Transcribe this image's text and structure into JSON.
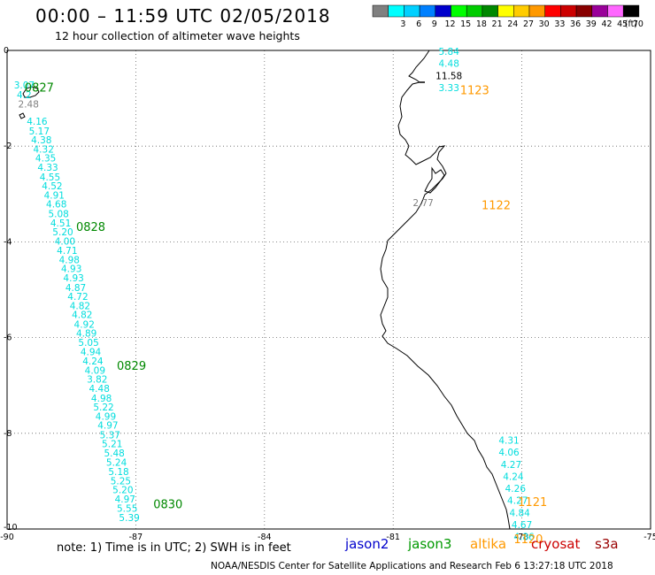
{
  "header": {
    "title": "00:00 – 11:59 UTC 02/05/2018",
    "subtitle": "12 hour collection of altimeter wave heights"
  },
  "legend": {
    "unit": "(ft)",
    "bins": [
      {
        "label": "",
        "color": "#808080"
      },
      {
        "label": "3",
        "color": "#00ffff"
      },
      {
        "label": "6",
        "color": "#00d0ff"
      },
      {
        "label": "9",
        "color": "#0080ff"
      },
      {
        "label": "12",
        "color": "#0000cc"
      },
      {
        "label": "15",
        "color": "#00ff00"
      },
      {
        "label": "18",
        "color": "#00cc00"
      },
      {
        "label": "21",
        "color": "#008800"
      },
      {
        "label": "24",
        "color": "#ffff00"
      },
      {
        "label": "27",
        "color": "#ffcc00"
      },
      {
        "label": "30",
        "color": "#ff9900"
      },
      {
        "label": "33",
        "color": "#ff0000"
      },
      {
        "label": "36",
        "color": "#cc0000"
      },
      {
        "label": "39",
        "color": "#880000"
      },
      {
        "label": "42",
        "color": "#990099"
      },
      {
        "label": "45",
        "color": "#ff66ff"
      },
      {
        "label": "70",
        "color": "#000000"
      }
    ]
  },
  "map": {
    "lon_range": [
      -90,
      -75
    ],
    "lat_range": [
      -10,
      0
    ],
    "x_ticks": [
      {
        "value": -90,
        "label": "-90"
      },
      {
        "value": -87,
        "label": "-87"
      },
      {
        "value": -84,
        "label": "-84"
      },
      {
        "value": -81,
        "label": "-81"
      },
      {
        "value": -78,
        "label": "-78"
      },
      {
        "value": -75,
        "label": "-75"
      }
    ],
    "y_ticks": [
      {
        "value": 0,
        "label": "0"
      },
      {
        "value": -2,
        "label": "-2"
      },
      {
        "value": -4,
        "label": "-4"
      },
      {
        "value": -6,
        "label": "-6"
      },
      {
        "value": -8,
        "label": "-8"
      },
      {
        "value": -10,
        "label": "-10"
      }
    ],
    "grid": "dotted"
  },
  "chart_data": {
    "type": "scatter",
    "tracks": [
      {
        "satellite": "jason3",
        "color": "#00dddd",
        "points": [
          {
            "lon": -89.6,
            "lat": -0.72,
            "v": "3.07"
          },
          {
            "lon": -89.6,
            "lat": -0.92,
            "v": "4.2"
          },
          {
            "lon": -89.5,
            "lat": -1.12,
            "v": "2.48",
            "color": "#808080"
          },
          {
            "lon": -89.3,
            "lat": -1.48,
            "v": "4.16"
          },
          {
            "lon": -89.25,
            "lat": -1.68,
            "v": "5.17"
          },
          {
            "lon": -89.2,
            "lat": -1.87,
            "v": "4.38"
          },
          {
            "lon": -89.15,
            "lat": -2.06,
            "v": "4.32"
          },
          {
            "lon": -89.1,
            "lat": -2.25,
            "v": "4.35"
          },
          {
            "lon": -89.05,
            "lat": -2.44,
            "v": "4.33"
          },
          {
            "lon": -89.0,
            "lat": -2.64,
            "v": "4.55"
          },
          {
            "lon": -88.95,
            "lat": -2.83,
            "v": "4.52"
          },
          {
            "lon": -88.9,
            "lat": -3.02,
            "v": "4.91"
          },
          {
            "lon": -88.85,
            "lat": -3.21,
            "v": "4.68"
          },
          {
            "lon": -88.8,
            "lat": -3.41,
            "v": "5.08"
          },
          {
            "lon": -88.75,
            "lat": -3.6,
            "v": "4.51"
          },
          {
            "lon": -88.7,
            "lat": -3.79,
            "v": "5.20"
          },
          {
            "lon": -88.65,
            "lat": -3.98,
            "v": "4.00"
          },
          {
            "lon": -88.6,
            "lat": -4.18,
            "v": "4.71"
          },
          {
            "lon": -88.55,
            "lat": -4.37,
            "v": "4.98"
          },
          {
            "lon": -88.5,
            "lat": -4.56,
            "v": "4.93"
          },
          {
            "lon": -88.45,
            "lat": -4.75,
            "v": "4.93"
          },
          {
            "lon": -88.4,
            "lat": -4.95,
            "v": "4.87"
          },
          {
            "lon": -88.35,
            "lat": -5.14,
            "v": "4.72"
          },
          {
            "lon": -88.3,
            "lat": -5.33,
            "v": "4.82"
          },
          {
            "lon": -88.25,
            "lat": -5.52,
            "v": "4.82"
          },
          {
            "lon": -88.2,
            "lat": -5.72,
            "v": "4.92"
          },
          {
            "lon": -88.15,
            "lat": -5.91,
            "v": "4.89"
          },
          {
            "lon": -88.1,
            "lat": -6.1,
            "v": "5.05"
          },
          {
            "lon": -88.05,
            "lat": -6.29,
            "v": "4.94"
          },
          {
            "lon": -88.0,
            "lat": -6.49,
            "v": "4.24"
          },
          {
            "lon": -87.95,
            "lat": -6.68,
            "v": "4.09"
          },
          {
            "lon": -87.9,
            "lat": -6.87,
            "v": "3.82"
          },
          {
            "lon": -87.85,
            "lat": -7.06,
            "v": "4.48"
          },
          {
            "lon": -87.8,
            "lat": -7.26,
            "v": "4.98"
          },
          {
            "lon": -87.75,
            "lat": -7.45,
            "v": "5.22"
          },
          {
            "lon": -87.7,
            "lat": -7.64,
            "v": "4.99"
          },
          {
            "lon": -87.65,
            "lat": -7.83,
            "v": "4.97"
          },
          {
            "lon": -87.6,
            "lat": -8.03,
            "v": "5.37"
          },
          {
            "lon": -87.55,
            "lat": -8.22,
            "v": "5.21"
          },
          {
            "lon": -87.5,
            "lat": -8.41,
            "v": "5.48"
          },
          {
            "lon": -87.45,
            "lat": -8.6,
            "v": "5.24"
          },
          {
            "lon": -87.4,
            "lat": -8.8,
            "v": "5.18"
          },
          {
            "lon": -87.35,
            "lat": -8.99,
            "v": "5.25"
          },
          {
            "lon": -87.3,
            "lat": -9.18,
            "v": "5.20"
          },
          {
            "lon": -87.25,
            "lat": -9.37,
            "v": "4.97"
          },
          {
            "lon": -87.2,
            "lat": -9.57,
            "v": "5.55"
          },
          {
            "lon": -87.15,
            "lat": -9.76,
            "v": "5.39"
          }
        ]
      },
      {
        "satellite": "altika",
        "color": "#00dddd",
        "points": [
          {
            "lon": -79.7,
            "lat": -0.02,
            "v": "5.84"
          },
          {
            "lon": -79.7,
            "lat": -0.27,
            "v": "4.48"
          },
          {
            "lon": -79.7,
            "lat": -0.53,
            "v": "11.58",
            "color": "#000000"
          },
          {
            "lon": -79.7,
            "lat": -0.78,
            "v": "3.33"
          },
          {
            "lon": -80.3,
            "lat": -3.18,
            "v": "2.77",
            "color": "#808080"
          },
          {
            "lon": -78.3,
            "lat": -8.14,
            "v": "4.31"
          },
          {
            "lon": -78.3,
            "lat": -8.39,
            "v": "4.06"
          },
          {
            "lon": -78.25,
            "lat": -8.65,
            "v": "4.27"
          },
          {
            "lon": -78.2,
            "lat": -8.9,
            "v": "4.24"
          },
          {
            "lon": -78.15,
            "lat": -9.15,
            "v": "4.26"
          },
          {
            "lon": -78.1,
            "lat": -9.4,
            "v": "4.27"
          },
          {
            "lon": -78.05,
            "lat": -9.66,
            "v": "4.84"
          },
          {
            "lon": -78.0,
            "lat": -9.91,
            "v": "4.67"
          },
          {
            "lon": -77.95,
            "lat": -10.16,
            "v": "4.86"
          }
        ]
      }
    ],
    "time_labels": [
      {
        "lon": -89.25,
        "lat": -0.77,
        "text": "0827",
        "color": "#008800"
      },
      {
        "lon": -88.05,
        "lat": -3.68,
        "text": "0828",
        "color": "#008800"
      },
      {
        "lon": -87.1,
        "lat": -6.58,
        "text": "0829",
        "color": "#008800"
      },
      {
        "lon": -86.25,
        "lat": -9.47,
        "text": "0830",
        "color": "#008800"
      },
      {
        "lon": -79.1,
        "lat": -0.82,
        "text": "1123",
        "color": "#ff9900"
      },
      {
        "lon": -78.6,
        "lat": -3.23,
        "text": "1122",
        "color": "#ff9900"
      },
      {
        "lon": -77.75,
        "lat": -9.43,
        "text": "1121",
        "color": "#ff9900"
      },
      {
        "lon": -77.85,
        "lat": -10.2,
        "text": "1120",
        "color": "#ff9900"
      }
    ]
  },
  "footer": {
    "note": "note:  1) Time is in UTC;  2) SWH is in feet",
    "credit": "NOAA/NESDIS Center for Satellite Applications and Research    Feb  6 13:27:18 UTC 2018",
    "satellites": [
      "jason2",
      "jason3",
      "altika",
      "cryosat",
      "s3a"
    ]
  }
}
